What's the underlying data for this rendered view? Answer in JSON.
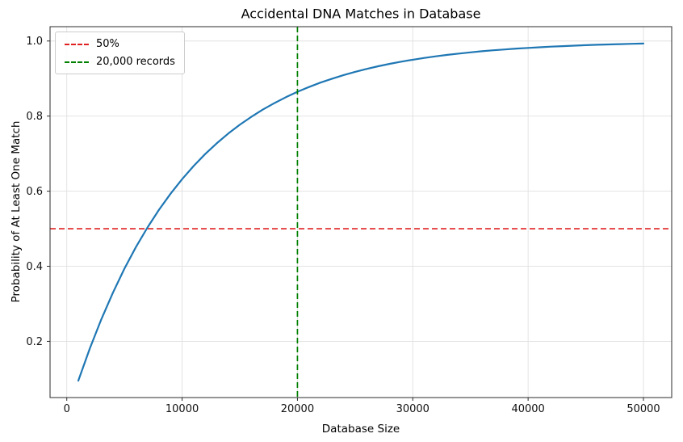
{
  "chart_data": {
    "type": "line",
    "title": "Accidental DNA Matches in Database",
    "xlabel": "Database Size",
    "ylabel": "Probability of At Least One Match",
    "x": [
      1000,
      2000,
      3000,
      4000,
      5000,
      6000,
      7000,
      8000,
      9000,
      10000,
      11000,
      12000,
      13000,
      14000,
      15000,
      16000,
      17000,
      18000,
      19000,
      20000,
      21000,
      22000,
      23000,
      24000,
      25000,
      26000,
      27000,
      28000,
      29000,
      30000,
      31000,
      32000,
      33000,
      34000,
      35000,
      36000,
      37000,
      38000,
      39000,
      40000,
      41000,
      42000,
      43000,
      44000,
      45000,
      46000,
      47000,
      48000,
      49000,
      50000
    ],
    "y": [
      0.0952,
      0.1813,
      0.2592,
      0.3297,
      0.3935,
      0.4512,
      0.5034,
      0.5507,
      0.5934,
      0.6321,
      0.6671,
      0.6988,
      0.7275,
      0.7534,
      0.7769,
      0.7981,
      0.8173,
      0.8347,
      0.8504,
      0.8647,
      0.8775,
      0.8892,
      0.8997,
      0.9093,
      0.9179,
      0.9257,
      0.9328,
      0.9392,
      0.945,
      0.9502,
      0.955,
      0.9592,
      0.9631,
      0.9666,
      0.9698,
      0.9727,
      0.9753,
      0.9776,
      0.9798,
      0.9817,
      0.9834,
      0.985,
      0.9864,
      0.9877,
      0.9889,
      0.9899,
      0.9909,
      0.9918,
      0.9926,
      0.9933
    ],
    "series_color": "#1f77b4",
    "xlim": [
      -1450,
      52450
    ],
    "ylim": [
      0.0503,
      1.0382
    ],
    "xticks": [
      0,
      10000,
      20000,
      30000,
      40000,
      50000
    ],
    "xtick_labels": [
      "0",
      "10000",
      "20000",
      "30000",
      "40000",
      "50000"
    ],
    "yticks": [
      0.2,
      0.4,
      0.6,
      0.8,
      1.0
    ],
    "ytick_labels": [
      "0.2",
      "0.4",
      "0.6",
      "0.8",
      "1.0"
    ],
    "grid": true,
    "grid_color": "#e0e0e0",
    "spine_color": "#2b2b2b",
    "reference_lines": [
      {
        "orientation": "h",
        "value": 0.5,
        "color": "#e02020",
        "style": "dashed",
        "label": "50%"
      },
      {
        "orientation": "v",
        "value": 20000,
        "color": "#008000",
        "style": "dashed",
        "label": "20,000 records"
      }
    ],
    "legend": {
      "position": "upper-left",
      "entries": [
        {
          "label": "50%",
          "color": "#e02020"
        },
        {
          "label": "20,000 records",
          "color": "#008000"
        }
      ]
    }
  }
}
